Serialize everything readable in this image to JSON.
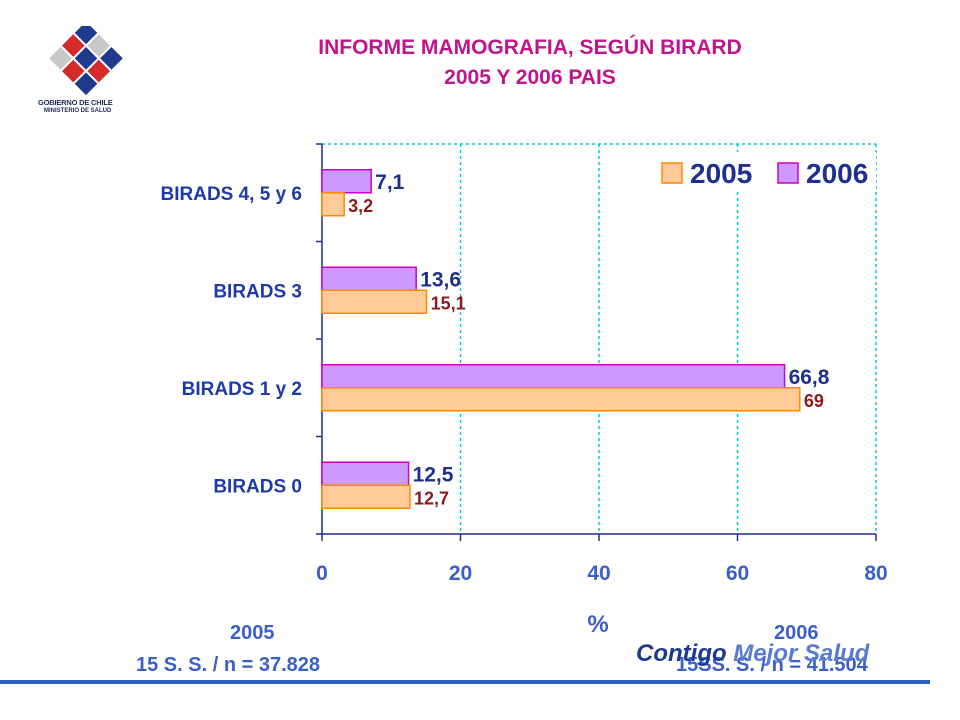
{
  "header": {
    "title_line1": "INFORME MAMOGRAFIA, SEGÚN BIRARD",
    "title_line2": "2005 Y 2006 PAIS",
    "logo_line1": "GOBIERNO DE CHILE",
    "logo_line2": "MINISTERIO DE SALUD"
  },
  "colors": {
    "title": "#c0148c",
    "bar_2005_fill": "#ffcc99",
    "bar_2005_stroke": "#ff8800",
    "bar_2006_fill": "#cc99ff",
    "bar_2006_stroke": "#cc00cc",
    "label_2005": "#8b1a1a",
    "label_2006": "#1f2f8c",
    "grid": "#00cccc",
    "footer": "#3b5fc9"
  },
  "chart_data": {
    "type": "bar",
    "orientation": "horizontal",
    "categories": [
      "BIRADS  4, 5 y 6",
      "BIRADS  3",
      "BIRADS  1 y 2",
      "BIRADS  0"
    ],
    "series": [
      {
        "name": "2006",
        "values": [
          7.1,
          13.6,
          66.8,
          12.5
        ],
        "labels": [
          "7,1",
          "13,6",
          "66,8",
          "12,5"
        ]
      },
      {
        "name": "2005",
        "values": [
          3.2,
          15.1,
          69,
          12.7
        ],
        "labels": [
          "3,2",
          "15,1",
          "69",
          "12,7"
        ]
      }
    ],
    "legend": [
      {
        "name": "2005"
      },
      {
        "name": "2006"
      }
    ],
    "legend_position": "top-right",
    "xlabel": "%",
    "xlim": [
      0,
      80
    ],
    "xticks": [
      0,
      20,
      40,
      60,
      80
    ],
    "grid": true
  },
  "footer": {
    "left_year": "2005",
    "left_detail": "15 S. S. / n = 37.828",
    "right_year": "2006",
    "right_detail": "15SS. S. / n = 41.504",
    "brand_part1": "Contigo",
    "brand_part2": " Mejor Salud"
  }
}
